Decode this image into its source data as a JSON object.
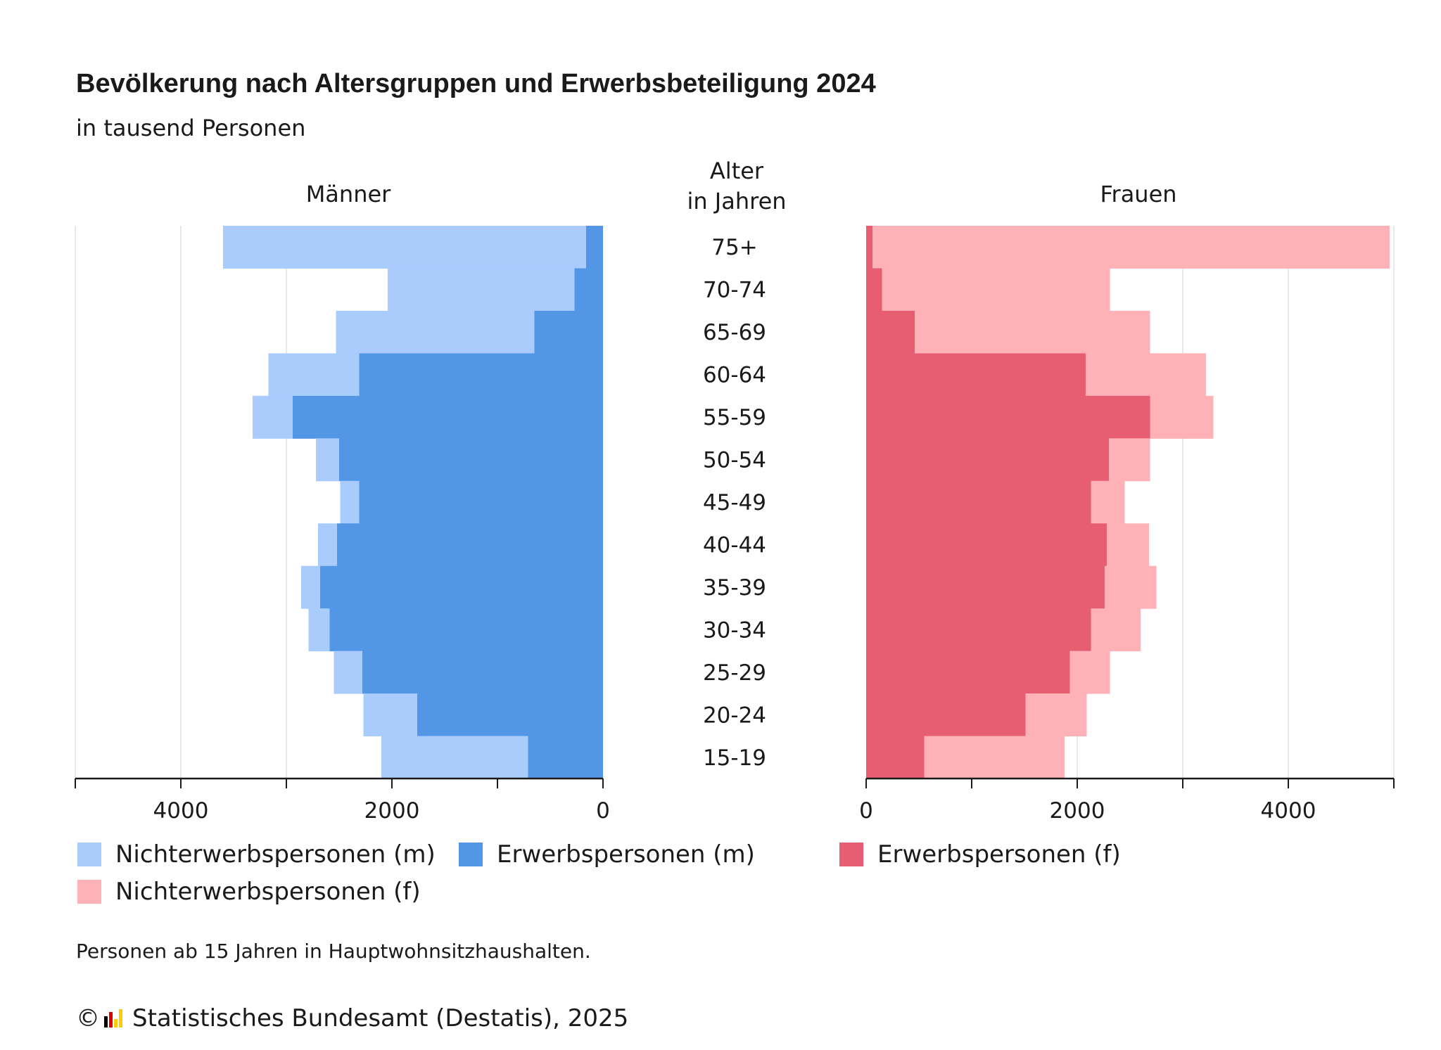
{
  "title": "Bevölkerung nach Altersgruppen und Erwerbsbeteiligung 2024",
  "subtitle": "in tausend Personen",
  "panel_left_label": "Männer",
  "center_label_line1": "Alter",
  "center_label_line2": "in Jahren",
  "panel_right_label": "Frauen",
  "chart_data": {
    "type": "bar",
    "orientation": "horizontal-population-pyramid",
    "categories": [
      "75+",
      "70-74",
      "65-69",
      "60-64",
      "55-59",
      "50-54",
      "45-49",
      "40-44",
      "35-39",
      "30-34",
      "25-29",
      "20-24",
      "15-19"
    ],
    "series": [
      {
        "name": "Nichterwerbspersonen (m)",
        "side": "left",
        "stack": "outer",
        "color": "#a9ccfd",
        "values": [
          3440,
          1770,
          1880,
          860,
          380,
          220,
          180,
          180,
          180,
          200,
          270,
          510,
          1390
        ]
      },
      {
        "name": "Erwerbspersonen (m)",
        "side": "left",
        "stack": "inner",
        "color": "#5396e5",
        "values": [
          160,
          270,
          650,
          2310,
          2940,
          2500,
          2310,
          2520,
          2680,
          2590,
          2280,
          1760,
          710
        ]
      },
      {
        "name": "Erwerbspersonen (f)",
        "side": "right",
        "stack": "inner",
        "color": "#e75e72",
        "values": [
          60,
          150,
          460,
          2080,
          2690,
          2300,
          2130,
          2280,
          2260,
          2130,
          1930,
          1510,
          550
        ]
      },
      {
        "name": "Nichterwerbspersonen (f)",
        "side": "right",
        "stack": "outer",
        "color": "#feb2b7",
        "values": [
          4900,
          2160,
          2230,
          1140,
          600,
          390,
          320,
          400,
          490,
          470,
          380,
          580,
          1330
        ]
      }
    ],
    "xticks_left": [
      4000,
      2000,
      0
    ],
    "xticks_right": [
      0,
      2000,
      4000
    ],
    "xlim": [
      0,
      5000
    ],
    "grid": true
  },
  "tick_labels_left": [
    "4000",
    "2000",
    "0"
  ],
  "tick_labels_right": [
    "0",
    "2000",
    "4000"
  ],
  "legend": [
    {
      "label": "Nichterwerbspersonen (m)",
      "color": "#a9ccfd"
    },
    {
      "label": "Erwerbspersonen (m)",
      "color": "#5396e5"
    },
    {
      "label": "Erwerbspersonen (f)",
      "color": "#e75e72"
    },
    {
      "label": "Nichterwerbspersonen (f)",
      "color": "#feb2b7"
    }
  ],
  "note": "Personen ab 15 Jahren in Hauptwohnsitzhaushalten.",
  "source": "Statistisches Bundesamt (Destatis), 2025"
}
